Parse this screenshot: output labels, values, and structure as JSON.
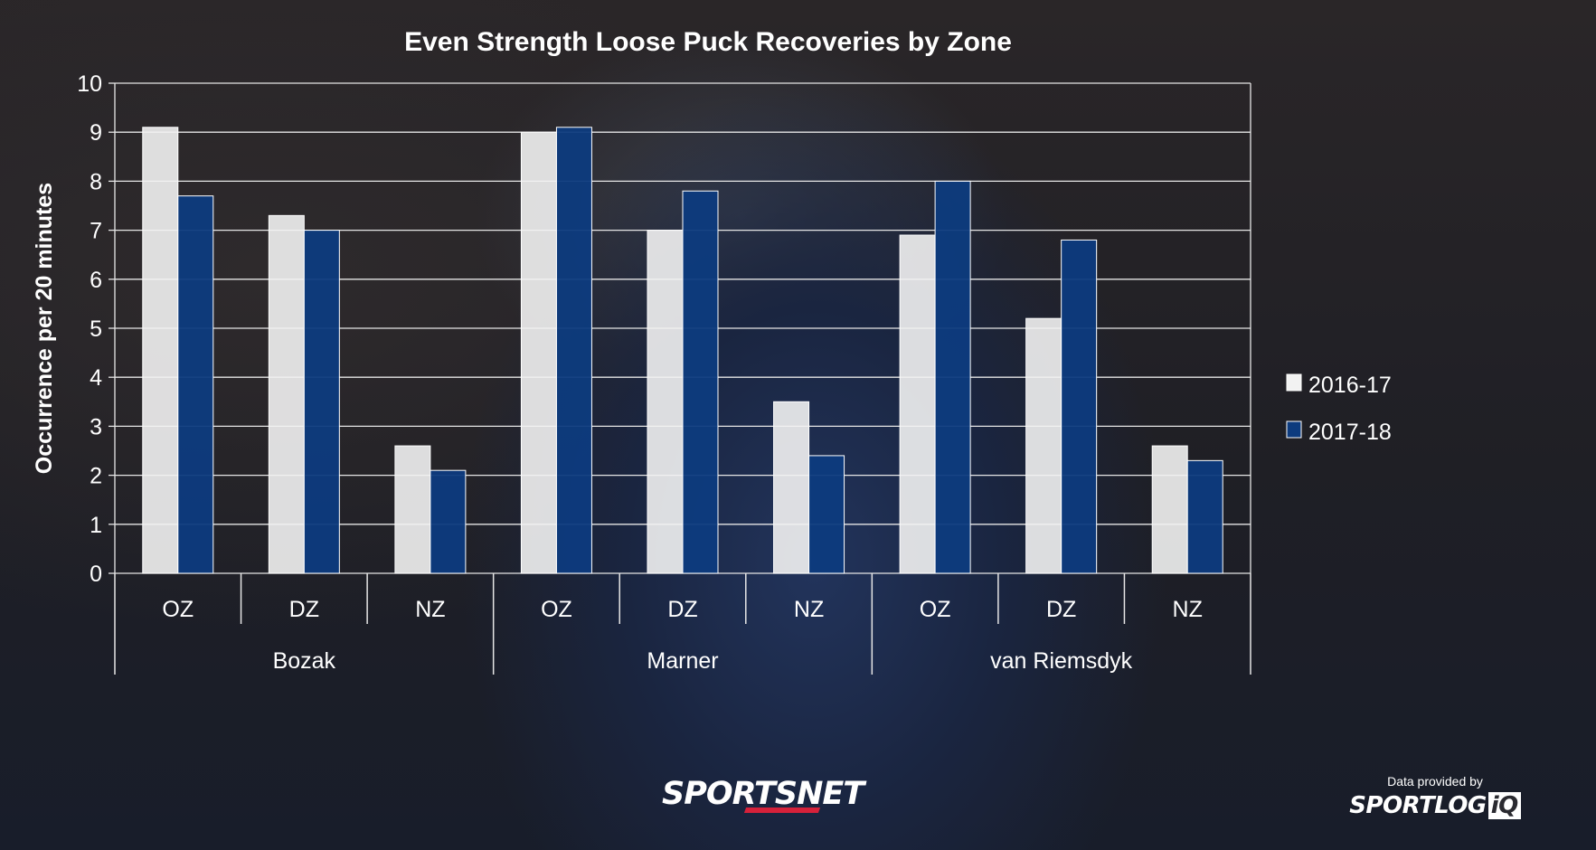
{
  "chart_data": {
    "type": "bar",
    "title": "Even Strength Loose Puck Recoveries by Zone",
    "ylabel": "Occurrence per 20 minutes",
    "ylim": [
      0,
      10
    ],
    "yticks": [
      "0",
      "1",
      "2",
      "3",
      "4",
      "5",
      "6",
      "7",
      "8",
      "9",
      "10"
    ],
    "categories": [
      "OZ",
      "DZ",
      "NZ",
      "OZ",
      "DZ",
      "NZ",
      "OZ",
      "DZ",
      "NZ"
    ],
    "groups": [
      {
        "name": "Bozak",
        "span": 3
      },
      {
        "name": "Marner",
        "span": 3
      },
      {
        "name": "van Riemsdyk",
        "span": 3
      }
    ],
    "series": [
      {
        "name": "2016-17",
        "color": "#f2f2f2",
        "values": [
          9.1,
          7.3,
          2.6,
          9.0,
          7.0,
          3.5,
          6.9,
          5.2,
          2.6
        ]
      },
      {
        "name": "2017-18",
        "color": "#0d3b7e",
        "values": [
          7.7,
          7.0,
          2.1,
          9.1,
          7.8,
          2.4,
          8.0,
          6.8,
          2.3
        ]
      }
    ],
    "grid": true,
    "legend": "right"
  },
  "branding": {
    "sportsnet": "SPORTSNET",
    "credit": "Data provided by",
    "sportlogiq_main": "SPORTLOG",
    "sportlogiq_tail": "iQ"
  }
}
